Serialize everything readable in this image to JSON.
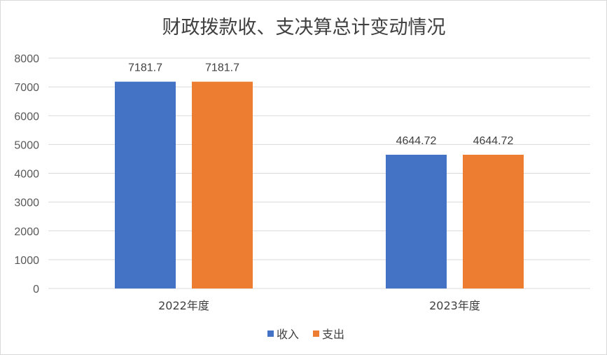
{
  "chart_data": {
    "type": "bar",
    "title": "财政拨款收、支决算总计变动情况",
    "categories": [
      "2022年度",
      "2023年度"
    ],
    "series": [
      {
        "name": "收入",
        "values": [
          7181.7,
          4644.72
        ],
        "labels": [
          "7181.7",
          "4644.72"
        ],
        "color": "#4472C4"
      },
      {
        "name": "支出",
        "values": [
          7181.7,
          4644.72
        ],
        "labels": [
          "7181.7",
          "4644.72"
        ],
        "color": "#ED7D31"
      }
    ],
    "ylim": [
      0,
      8000
    ],
    "yticks": [
      "0",
      "1000",
      "2000",
      "3000",
      "4000",
      "5000",
      "6000",
      "7000",
      "8000"
    ],
    "grid": true,
    "legend": "bottom",
    "gridColor": "#d9d9d9"
  }
}
